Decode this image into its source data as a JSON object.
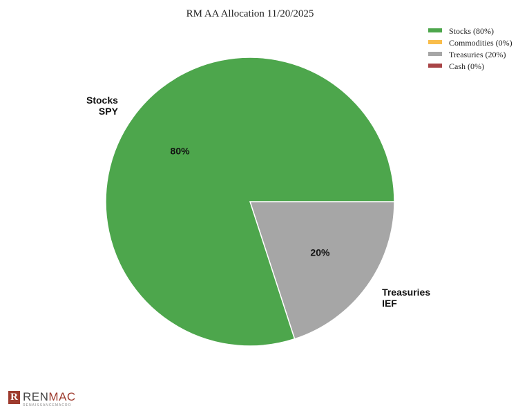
{
  "chart_data": {
    "type": "pie",
    "title": "RM AA Allocation 11/20/2025",
    "slices": [
      {
        "label": "Stocks",
        "ticker": "SPY",
        "value": 80,
        "pct_label": "80%",
        "legend": "Stocks (80%)",
        "color": "#4da64c"
      },
      {
        "label": "Commodities",
        "ticker": "",
        "value": 0,
        "pct_label": "",
        "legend": "Commodities (0%)",
        "color": "#f9bd4b"
      },
      {
        "label": "Treasuries",
        "ticker": "IEF",
        "value": 20,
        "pct_label": "20%",
        "legend": "Treasuries (20%)",
        "color": "#a6a6a6"
      },
      {
        "label": "Cash",
        "ticker": "",
        "value": 0,
        "pct_label": "",
        "legend": "Cash (0%)",
        "color": "#a84446"
      }
    ],
    "legend_position": "top-right"
  },
  "logo": {
    "mark": "R",
    "text_main": "REN",
    "text_accent": "MAC",
    "text_sub": "RENAISSANCEMACRO"
  }
}
